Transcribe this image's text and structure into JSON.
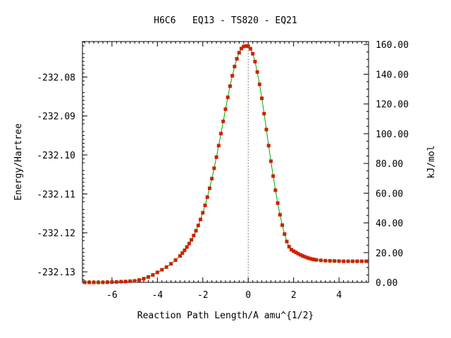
{
  "chart_data": {
    "type": "scatter",
    "title": "H6C6   EQ13 - TS820 - EQ21",
    "xlabel": "Reaction Path Length/A amu^{1/2}",
    "ylabel": "Energy/Hartree",
    "y2label": "kJ/mol",
    "xlim": [
      -7.3,
      5.3
    ],
    "ylim": [
      -232.1327,
      -232.0709
    ],
    "y2lim": [
      0.0,
      162.0
    ],
    "xticks": [
      -6,
      -4,
      -2,
      0,
      2,
      4
    ],
    "xtick_labels": [
      "-6",
      "-4",
      "-2",
      "0",
      "2",
      "4"
    ],
    "yticks": [
      -232.08,
      -232.09,
      -232.1,
      -232.11,
      -232.12,
      -232.13
    ],
    "ytick_labels": [
      "-232.08",
      "-232.09",
      "-232.10",
      "-232.11",
      "-232.12",
      "-232.13"
    ],
    "y2ticks": [
      0,
      20,
      40,
      60,
      80,
      100,
      120,
      140,
      160
    ],
    "y2tick_labels": [
      "0.00",
      "20.00",
      "40.00",
      "60.00",
      "80.00",
      "100.00",
      "120.00",
      "140.00",
      "160.00"
    ],
    "ts_x": 0.0,
    "series": [
      {
        "line_color": "#00aa00",
        "marker_color": "#cc2200",
        "x": [
          -7.2,
          -7.0,
          -6.8,
          -6.6,
          -6.4,
          -6.2,
          -6.0,
          -5.8,
          -5.6,
          -5.4,
          -5.2,
          -5.0,
          -4.8,
          -4.6,
          -4.4,
          -4.2,
          -4.0,
          -3.8,
          -3.6,
          -3.4,
          -3.2,
          -3.0,
          -2.9,
          -2.8,
          -2.7,
          -2.6,
          -2.5,
          -2.4,
          -2.3,
          -2.2,
          -2.1,
          -2.0,
          -1.9,
          -1.8,
          -1.7,
          -1.6,
          -1.5,
          -1.4,
          -1.3,
          -1.2,
          -1.1,
          -1.0,
          -0.9,
          -0.8,
          -0.7,
          -0.6,
          -0.5,
          -0.4,
          -0.3,
          -0.2,
          -0.1,
          0.0,
          0.1,
          0.2,
          0.3,
          0.4,
          0.5,
          0.6,
          0.7,
          0.8,
          0.9,
          1.0,
          1.1,
          1.2,
          1.3,
          1.4,
          1.5,
          1.6,
          1.7,
          1.8,
          1.9,
          2.0,
          2.1,
          2.2,
          2.3,
          2.4,
          2.5,
          2.6,
          2.7,
          2.8,
          2.9,
          3.0,
          3.2,
          3.4,
          3.6,
          3.8,
          4.0,
          4.2,
          4.4,
          4.6,
          4.8,
          5.0,
          5.2
        ],
        "y": [
          0.0,
          0.0,
          0.0,
          0.0,
          0.0,
          0.1,
          0.2,
          0.3,
          0.5,
          0.6,
          0.8,
          1.0,
          1.6,
          2.5,
          3.6,
          5.0,
          6.7,
          8.5,
          10.3,
          12.5,
          15.0,
          17.8,
          19.7,
          21.6,
          23.8,
          26.1,
          28.6,
          31.5,
          34.7,
          38.3,
          42.3,
          46.8,
          51.8,
          57.3,
          63.3,
          69.8,
          76.8,
          84.2,
          92.0,
          100.1,
          108.3,
          116.5,
          124.5,
          132.0,
          139.0,
          145.2,
          150.4,
          154.5,
          157.3,
          158.7,
          159.0,
          158.8,
          157.2,
          153.8,
          148.5,
          141.5,
          133.2,
          123.8,
          113.5,
          102.8,
          92.0,
          81.5,
          71.5,
          62.0,
          53.3,
          45.5,
          38.5,
          32.5,
          27.5,
          24.0,
          22.0,
          21.0,
          20.2,
          19.3,
          18.5,
          17.8,
          17.2,
          16.6,
          16.1,
          15.7,
          15.4,
          15.1,
          14.8,
          14.6,
          14.5,
          14.4,
          14.3,
          14.2,
          14.2,
          14.2,
          14.2,
          14.2,
          14.2
        ]
      }
    ]
  }
}
